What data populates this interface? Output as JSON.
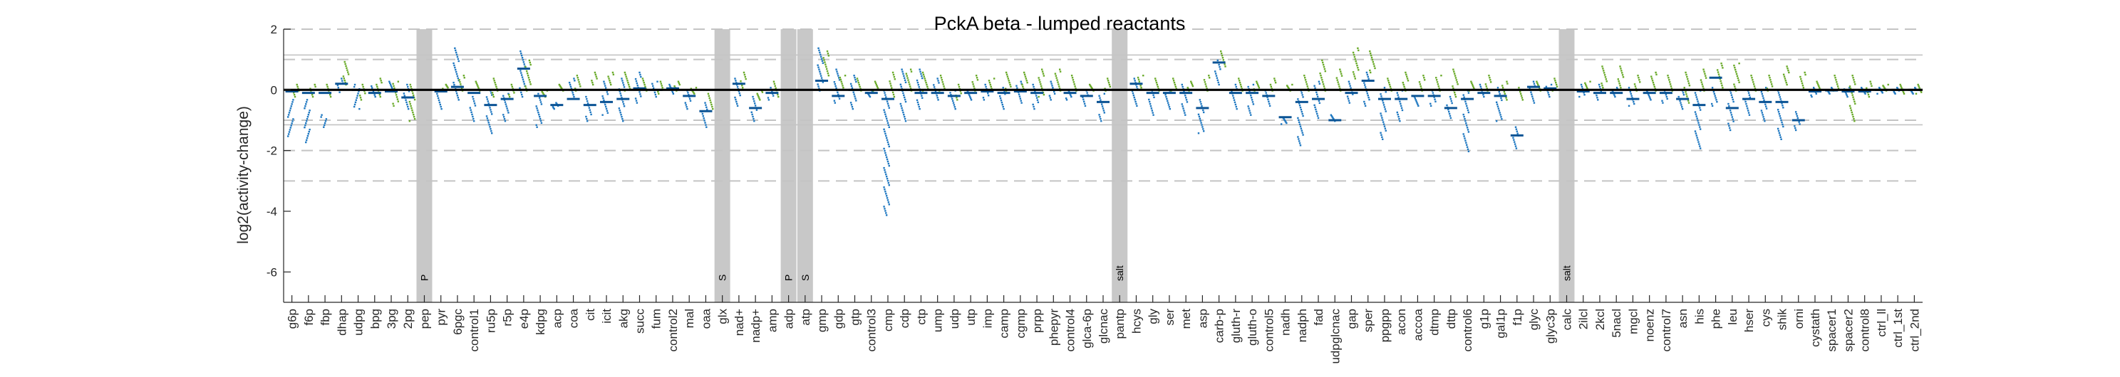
{
  "chart_data": {
    "type": "scatter",
    "title": "PckA beta - lumped reactants",
    "xlabel": "",
    "ylabel": "log2(activity-change)",
    "ylim": [
      -7,
      2
    ],
    "yticks": [
      2,
      0,
      -2,
      -4,
      -6
    ],
    "dashed_lines": [
      2,
      1,
      -1,
      -2,
      -3
    ],
    "solid_lines": [
      1.15,
      -1.15
    ],
    "zero_line": 0,
    "colors": {
      "blue": "#1f78c1",
      "green": "#6aaa2a",
      "marker": "#c8c8c8",
      "mean": "#0b5394"
    },
    "categories": [
      "g6p",
      "f6p",
      "fbp",
      "dhap",
      "udpg",
      "bpg",
      "3pg",
      "2pg",
      "pep",
      "pyr",
      "6pgc",
      "control1",
      "ru5p",
      "r5p",
      "e4p",
      "kdpg",
      "acp",
      "coa",
      "cit",
      "icit",
      "akg",
      "succ",
      "fum",
      "control2",
      "mal",
      "oaa",
      "glx",
      "nad+",
      "nadp+",
      "amp",
      "adp",
      "atp",
      "gmp",
      "gdp",
      "gtp",
      "control3",
      "cmp",
      "cdp",
      "ctp",
      "ump",
      "udp",
      "utp",
      "imp",
      "camp",
      "cgmp",
      "prpp",
      "phepyr",
      "control4",
      "glca-6p",
      "glcnac",
      "pantp",
      "hcys",
      "gly",
      "ser",
      "met",
      "asp",
      "carb-p",
      "gluth-r",
      "gluth-o",
      "control5",
      "nadh",
      "nadph",
      "fad",
      "udpglcnac",
      "gap",
      "sper",
      "ppgpp",
      "acon",
      "accoa",
      "dtmp",
      "dttp",
      "control6",
      "g1p",
      "gal1p",
      "f1p",
      "glyc",
      "glyc3p",
      "calc",
      "2ilcl",
      "2kcl",
      "5nacl",
      "mgcl",
      "noenz",
      "control7",
      "asn",
      "his",
      "phe",
      "leu",
      "hser",
      "cys",
      "shik",
      "orni",
      "cystath",
      "spacer1",
      "spacer2",
      "control8",
      "ctrl_ll",
      "ctrl_1st",
      "ctrl_2nd"
    ],
    "tick_labels": [
      "g6p",
      "f6p",
      "fbp",
      "dhap",
      "udpg",
      "bpg",
      "3pg",
      "2pg",
      "pep",
      "pyr",
      "6pgc",
      "control1",
      "ru5p",
      "r5p",
      "e4p",
      "kdpg",
      "acp",
      "coa",
      "cit",
      "icit",
      "akg",
      "succ",
      "fum",
      "control2",
      "mal",
      "oaa",
      "glx",
      "nad+",
      "nadp+",
      "amp",
      "adp",
      "atp",
      "gmp",
      "gdp",
      "gtp",
      "control3",
      "cmp",
      "cdp",
      "ctp",
      "ump",
      "udp",
      "utp",
      "imp",
      "camp",
      "cgmp",
      "prpp",
      "phepyr",
      "control4",
      "glca-6p",
      "glcnac",
      "pantp",
      "hcys",
      "gly",
      "ser",
      "met",
      "asp",
      "carb-p",
      "gluth-r",
      "gluth-o",
      "control5",
      "nadh",
      "nadph",
      "fad",
      "udpglcnac",
      "gap",
      "sper",
      "ppgpp",
      "acon",
      "accoa",
      "dtmp",
      "dttp",
      "control6",
      "g1p",
      "gal1p",
      "f1p",
      "glyc",
      "glyc3p",
      "calc",
      "2ilcl",
      "2kcl",
      "5nacl",
      "mgcl",
      "noenz",
      "control7",
      "asn",
      "his",
      "phe",
      "leu",
      "hser",
      "cys",
      "shik",
      "orni",
      "cystath",
      "spacer1",
      "spacer2",
      "control8",
      "ctrl_ll",
      "ctrl_1st",
      "ctrl_2nd"
    ],
    "markers": [
      {
        "category": "pep",
        "label": "P"
      },
      {
        "category": "glx",
        "label": "S"
      },
      {
        "category": "adp",
        "label": "P"
      },
      {
        "category": "atp",
        "label": "S"
      },
      {
        "category": "pantp",
        "label": "salt"
      },
      {
        "category": "calc",
        "label": "salt"
      }
    ],
    "series": [
      {
        "color": "blue",
        "values": [
          [
            -0.3,
            -1.5
          ],
          [
            -0.3,
            -1.7
          ],
          [
            -0.8,
            -1.2
          ],
          [
            -0.05,
            0.4
          ],
          [
            0.2,
            -0.6
          ],
          [
            -0.2,
            0.15
          ],
          [
            0.0,
            0.3
          ],
          [
            -0.6,
            0.2
          ],
          [
            0,
            0
          ],
          [
            -0.6,
            -0.1
          ],
          [
            -0.3,
            1.4
          ],
          [
            -1.0,
            -0.2
          ],
          [
            -1.4,
            0.0
          ],
          [
            -1.0,
            -0.1
          ],
          [
            -0.2,
            1.3
          ],
          [
            -1.2,
            -0.1
          ],
          [
            -0.6,
            -0.4
          ],
          [
            -0.2,
            0.4
          ],
          [
            -1.0,
            -0.2
          ],
          [
            -0.8,
            0.3
          ],
          [
            -1.0,
            0.4
          ],
          [
            -0.4,
            0.6
          ],
          [
            -0.2,
            0.3
          ],
          [
            -0.1,
            0.2
          ],
          [
            -0.6,
            0.0
          ],
          [
            -1.2,
            -0.4
          ],
          [
            0,
            0
          ],
          [
            -0.5,
            0.4
          ],
          [
            -1.0,
            -0.2
          ],
          [
            -0.3,
            0.1
          ],
          [
            0,
            0
          ],
          [
            0,
            0
          ],
          [
            0.0,
            1.4
          ],
          [
            -0.4,
            0.7
          ],
          [
            -0.6,
            0.5
          ],
          [
            -0.2,
            0.0
          ],
          [
            -4.1,
            0.0
          ],
          [
            -1.0,
            0.7
          ],
          [
            -0.6,
            0.7
          ],
          [
            -0.3,
            0.4
          ],
          [
            -0.6,
            0.0
          ],
          [
            -0.3,
            0.0
          ],
          [
            -0.3,
            0.2
          ],
          [
            -0.6,
            0.1
          ],
          [
            -0.4,
            0.3
          ],
          [
            -0.6,
            0.2
          ],
          [
            -0.3,
            0.3
          ],
          [
            -0.3,
            0.0
          ],
          [
            -0.5,
            0.0
          ],
          [
            -1.0,
            -0.1
          ],
          [
            0,
            0
          ],
          [
            -0.5,
            0.4
          ],
          [
            -0.8,
            0.0
          ],
          [
            -0.6,
            0.0
          ],
          [
            -0.8,
            0.2
          ],
          [
            -1.4,
            -0.3
          ],
          [
            0.2,
            1.0
          ],
          [
            -0.6,
            0.2
          ],
          [
            -0.8,
            0.2
          ],
          [
            -0.5,
            0.0
          ],
          [
            -1.1,
            -0.9
          ],
          [
            -1.8,
            0.0
          ],
          [
            -0.9,
            0.3
          ],
          [
            -1.0,
            -0.8
          ],
          [
            -0.4,
            0.3
          ],
          [
            -0.5,
            0.6
          ],
          [
            -1.6,
            0.1
          ],
          [
            -1.0,
            0.0
          ],
          [
            -0.5,
            -0.2
          ],
          [
            -0.5,
            0.0
          ],
          [
            -0.9,
            -0.2
          ],
          [
            -2.0,
            0.0
          ],
          [
            -0.2,
            0.2
          ],
          [
            -1.0,
            0.1
          ],
          [
            -1.9,
            -1.2
          ],
          [
            -0.4,
            0.3
          ],
          [
            -0.2,
            0.2
          ],
          [
            0,
            0
          ],
          [
            -0.2,
            0.2
          ],
          [
            -0.3,
            0.2
          ],
          [
            -0.2,
            0.1
          ],
          [
            -0.5,
            0.1
          ],
          [
            -0.3,
            0.0
          ],
          [
            -0.4,
            0.0
          ],
          [
            -0.6,
            0.0
          ],
          [
            -1.9,
            0.0
          ],
          [
            -0.5,
            0.1
          ],
          [
            -1.3,
            0.0
          ],
          [
            -0.8,
            0.0
          ],
          [
            -1.0,
            0.1
          ],
          [
            -1.6,
            0.0
          ],
          [
            -1.3,
            -0.7
          ],
          [
            -0.2,
            0.1
          ],
          [
            -0.1,
            0.1
          ],
          [
            -0.2,
            0.1
          ],
          [
            -0.1,
            0.1
          ],
          [
            -0.1,
            0.1
          ],
          [
            -0.1,
            0.1
          ],
          [
            -0.1,
            0.1
          ]
        ],
        "means": [
          -0.05,
          -0.1,
          -0.1,
          0.2,
          0.0,
          -0.1,
          -0.05,
          -0.25,
          0,
          -0.05,
          0.1,
          -0.1,
          -0.5,
          -0.3,
          0.7,
          -0.2,
          -0.5,
          -0.3,
          -0.5,
          -0.4,
          -0.3,
          0.05,
          0.0,
          0.05,
          -0.2,
          -0.7,
          0,
          0.2,
          -0.6,
          -0.1,
          0,
          0,
          0.3,
          -0.2,
          0.0,
          -0.1,
          -0.3,
          0.0,
          -0.1,
          -0.1,
          -0.2,
          -0.1,
          -0.05,
          -0.1,
          -0.05,
          -0.1,
          0.0,
          -0.1,
          -0.2,
          -0.4,
          0,
          0.2,
          -0.1,
          -0.1,
          -0.1,
          -0.6,
          0.9,
          -0.1,
          -0.1,
          -0.2,
          -0.9,
          -0.4,
          -0.3,
          -1.0,
          -0.1,
          0.3,
          -0.3,
          -0.3,
          -0.2,
          -0.2,
          -0.6,
          -0.3,
          -0.1,
          -0.2,
          -1.5,
          0.1,
          0.05,
          0,
          -0.05,
          -0.1,
          -0.1,
          -0.3,
          -0.1,
          -0.1,
          -0.3,
          -0.5,
          0.4,
          -0.6,
          -0.3,
          -0.4,
          -0.4,
          -1.0,
          -0.05,
          -0.02,
          -0.05,
          -0.05,
          0.0,
          0.0,
          0.0
        ]
      },
      {
        "color": "green",
        "values": [
          [
            -0.2,
            0.2
          ],
          [
            -0.2,
            0.2
          ],
          [
            -0.2,
            0.2
          ],
          [
            0.2,
            0.95
          ],
          [
            -0.3,
            0.2
          ],
          [
            -0.2,
            0.4
          ],
          [
            -0.5,
            0.3
          ],
          [
            -1.0,
            0.2
          ],
          [
            0,
            0
          ],
          [
            0.0,
            0.2
          ],
          [
            0.0,
            0.5
          ],
          [
            0.0,
            0.3
          ],
          [
            -0.2,
            0.4
          ],
          [
            -0.2,
            0.2
          ],
          [
            0.0,
            1.0
          ],
          [
            -0.2,
            0.0
          ],
          [
            0.0,
            0.2
          ],
          [
            0.0,
            0.5
          ],
          [
            0.2,
            0.6
          ],
          [
            0.2,
            0.6
          ],
          [
            0.0,
            0.6
          ],
          [
            0.0,
            0.4
          ],
          [
            -0.1,
            0.3
          ],
          [
            0.0,
            0.3
          ],
          [
            -0.1,
            0.1
          ],
          [
            -0.6,
            -0.1
          ],
          [
            0,
            0
          ],
          [
            0.1,
            0.6
          ],
          [
            -0.3,
            0.0
          ],
          [
            -0.2,
            0.3
          ],
          [
            0,
            0
          ],
          [
            0,
            0
          ],
          [
            0.5,
            1.3
          ],
          [
            0.1,
            0.5
          ],
          [
            0.0,
            0.4
          ],
          [
            0.0,
            0.3
          ],
          [
            -0.2,
            0.6
          ],
          [
            0.0,
            0.7
          ],
          [
            0.0,
            0.6
          ],
          [
            0.0,
            0.5
          ],
          [
            -0.3,
            0.2
          ],
          [
            0.0,
            0.5
          ],
          [
            0.0,
            0.4
          ],
          [
            0.0,
            0.6
          ],
          [
            0.0,
            0.6
          ],
          [
            -0.2,
            0.7
          ],
          [
            0.0,
            0.7
          ],
          [
            0.0,
            0.5
          ],
          [
            0.0,
            0.2
          ],
          [
            0.0,
            0.4
          ],
          [
            0,
            0
          ],
          [
            0.1,
            0.5
          ],
          [
            0.0,
            0.4
          ],
          [
            0.0,
            0.4
          ],
          [
            0.0,
            0.3
          ],
          [
            0.0,
            0.5
          ],
          [
            0.8,
            1.3
          ],
          [
            0.0,
            0.4
          ],
          [
            0.0,
            0.3
          ],
          [
            0.0,
            0.4
          ],
          [
            0.0,
            0.2
          ],
          [
            0.0,
            0.5
          ],
          [
            0.0,
            1.0
          ],
          [
            0.0,
            0.7
          ],
          [
            0.4,
            1.4
          ],
          [
            0.6,
            1.3
          ],
          [
            0.0,
            0.4
          ],
          [
            0.0,
            0.6
          ],
          [
            0.0,
            0.5
          ],
          [
            0.0,
            0.5
          ],
          [
            -0.2,
            0.7
          ],
          [
            0.0,
            0.3
          ],
          [
            0.0,
            0.5
          ],
          [
            -0.3,
            0.3
          ],
          [
            -0.3,
            0.1
          ],
          [
            0.0,
            0.3
          ],
          [
            0.0,
            0.4
          ],
          [
            0,
            0
          ],
          [
            0.0,
            0.3
          ],
          [
            0.1,
            0.8
          ],
          [
            0.1,
            0.8
          ],
          [
            0.0,
            0.5
          ],
          [
            0.0,
            0.6
          ],
          [
            0.0,
            0.5
          ],
          [
            -0.4,
            0.6
          ],
          [
            0.0,
            0.7
          ],
          [
            0.1,
            0.9
          ],
          [
            0.0,
            0.9
          ],
          [
            0.0,
            0.5
          ],
          [
            0.0,
            0.5
          ],
          [
            0.2,
            0.8
          ],
          [
            0.1,
            0.6
          ],
          [
            0.0,
            0.3
          ],
          [
            0.0,
            0.5
          ],
          [
            -1.0,
            0.5
          ],
          [
            -0.2,
            0.3
          ],
          [
            0.0,
            0.2
          ],
          [
            -0.1,
            0.2
          ],
          [
            -0.1,
            0.2
          ]
        ]
      }
    ]
  }
}
